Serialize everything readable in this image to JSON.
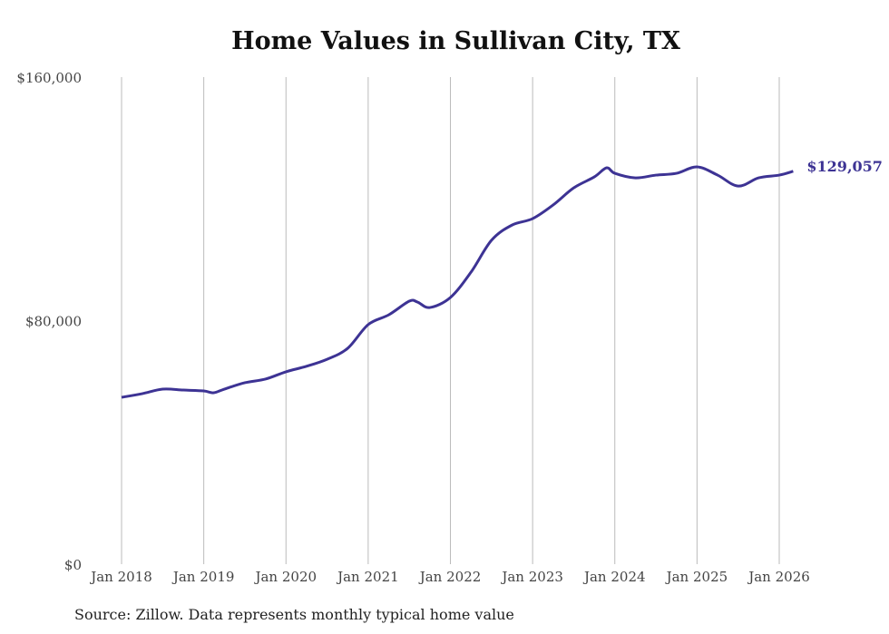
{
  "chart_data": {
    "type": "line",
    "title": "Home Values in Sullivan City, TX",
    "xlabel": "",
    "ylabel": "",
    "ylim": [
      0,
      160000
    ],
    "xlim": [
      2018.0,
      2026.17
    ],
    "grid": "vertical",
    "y_ticks": [
      {
        "value": 0,
        "label": "$0"
      },
      {
        "value": 80000,
        "label": "$80,000"
      },
      {
        "value": 160000,
        "label": "$160,000"
      }
    ],
    "x_ticks": [
      {
        "value": 2018,
        "label": "Jan 2018"
      },
      {
        "value": 2019,
        "label": "Jan 2019"
      },
      {
        "value": 2020,
        "label": "Jan 2020"
      },
      {
        "value": 2021,
        "label": "Jan 2021"
      },
      {
        "value": 2022,
        "label": "Jan 2022"
      },
      {
        "value": 2023,
        "label": "Jan 2023"
      },
      {
        "value": 2024,
        "label": "Jan 2024"
      },
      {
        "value": 2025,
        "label": "Jan 2025"
      },
      {
        "value": 2026,
        "label": "Jan 2026"
      }
    ],
    "series": [
      {
        "name": "Typical home value",
        "color": "#3d3394",
        "x": [
          2018.0,
          2018.25,
          2018.5,
          2018.75,
          2019.0,
          2019.12,
          2019.25,
          2019.5,
          2019.75,
          2020.0,
          2020.25,
          2020.5,
          2020.75,
          2021.0,
          2021.25,
          2021.5,
          2021.6,
          2021.75,
          2022.0,
          2022.25,
          2022.5,
          2022.75,
          2023.0,
          2023.25,
          2023.5,
          2023.75,
          2023.9,
          2024.0,
          2024.25,
          2024.5,
          2024.75,
          2025.0,
          2025.25,
          2025.5,
          2025.75,
          2026.0,
          2026.17
        ],
        "values": [
          54800,
          56000,
          57500,
          57200,
          56900,
          56300,
          57500,
          59600,
          60800,
          63200,
          65000,
          67300,
          70900,
          78700,
          81900,
          86400,
          86100,
          84300,
          87600,
          95900,
          106400,
          111400,
          113500,
          118000,
          123600,
          127200,
          130200,
          128400,
          126900,
          127800,
          128400,
          130500,
          127800,
          124200,
          126900,
          127800,
          129057
        ]
      }
    ],
    "end_label": "$129,057",
    "source": "Source: Zillow. Data represents monthly typical home value"
  }
}
